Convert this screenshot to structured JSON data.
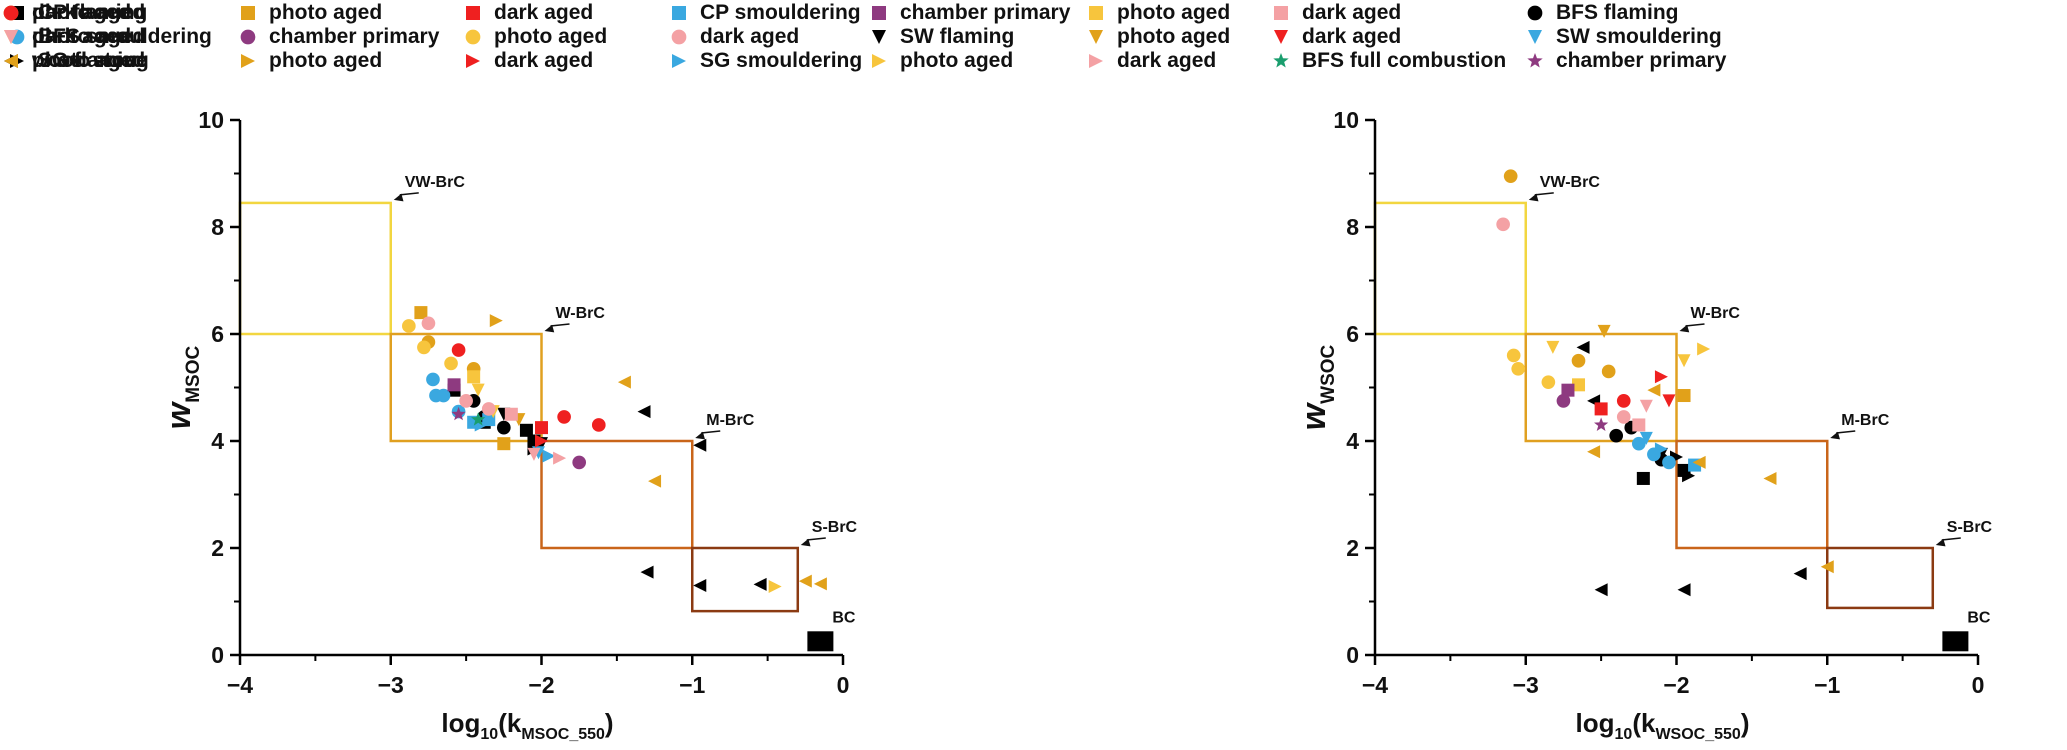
{
  "legend": {
    "items": [
      {
        "label": "CP flaming",
        "marker": "square",
        "color": "#000000"
      },
      {
        "label": "BFS smouldering",
        "marker": "circle",
        "color": "#3aa8e0"
      },
      {
        "label": "SG flaming",
        "marker": "triangle-right",
        "color": "#000000"
      },
      {
        "label": "photo aged",
        "marker": "square",
        "color": "#e1a11a"
      },
      {
        "label": "chamber primary",
        "marker": "circle",
        "color": "#8e3a80"
      },
      {
        "label": "photo aged",
        "marker": "triangle-right",
        "color": "#e1a11a"
      },
      {
        "label": "dark aged",
        "marker": "square",
        "color": "#ef2020"
      },
      {
        "label": "photo aged",
        "marker": "circle",
        "color": "#f7c53d"
      },
      {
        "label": "dark aged",
        "marker": "triangle-right",
        "color": "#ef2020"
      },
      {
        "label": "CP smouldering",
        "marker": "square",
        "color": "#3aa8e0"
      },
      {
        "label": "dark aged",
        "marker": "circle",
        "color": "#f4a1a4"
      },
      {
        "label": "SG smouldering",
        "marker": "triangle-right",
        "color": "#3aa8e0"
      },
      {
        "label": "chamber primary",
        "marker": "square",
        "color": "#8e3a80"
      },
      {
        "label": "SW flaming",
        "marker": "triangle-down",
        "color": "#000000"
      },
      {
        "label": "photo aged",
        "marker": "triangle-right",
        "color": "#f7c53d"
      },
      {
        "label": "photo aged",
        "marker": "square",
        "color": "#f7c53d"
      },
      {
        "label": "photo aged",
        "marker": "triangle-down",
        "color": "#e1a11a"
      },
      {
        "label": "dark aged",
        "marker": "triangle-right",
        "color": "#f4a1a4"
      },
      {
        "label": "dark aged",
        "marker": "square",
        "color": "#f4a1a4"
      },
      {
        "label": "dark aged",
        "marker": "triangle-down",
        "color": "#ef2020"
      },
      {
        "label": "BFS full combustion",
        "marker": "star",
        "color": "#1a9e6e"
      },
      {
        "label": "BFS flaming",
        "marker": "circle",
        "color": "#000000"
      },
      {
        "label": "SW smouldering",
        "marker": "triangle-down",
        "color": "#3aa8e0"
      },
      {
        "label": "chamber primary",
        "marker": "star",
        "color": "#8e3a80"
      },
      {
        "label": "photo aged",
        "marker": "circle",
        "color": "#e1a11a"
      },
      {
        "label": "photo aged",
        "marker": "triangle-down",
        "color": "#f7c53d"
      },
      {
        "label": "wood stove",
        "marker": "triangle-left",
        "color": "#000000"
      },
      {
        "label": "dark aged",
        "marker": "circle",
        "color": "#ef2020"
      },
      {
        "label": "dark aged",
        "marker": "triangle-down",
        "color": "#f4a1a4"
      },
      {
        "label": "photo aged",
        "marker": "triangle-left",
        "color": "#e1a11a"
      }
    ]
  },
  "colors": {
    "black": "#000000",
    "blue": "#3aa8e0",
    "orange": "#e1a11a",
    "yellow": "#f7c53d",
    "red": "#ef2020",
    "pink": "#f4a1a4",
    "purple": "#8e3a80",
    "green": "#1a9e6e",
    "box_vw": "#f2d640",
    "box_w": "#e0a020",
    "box_m": "#c9651a",
    "box_s": "#8b3a12"
  },
  "chart_data": [
    {
      "type": "scatter",
      "ylabel_main": "w",
      "ylabel_sub": "MSOC",
      "xlabel_main": "log",
      "xlabel_sub1": "10",
      "xlabel_paren_open": "(k",
      "xlabel_sub2": "MSOC_550",
      "xlabel_paren_close": ")",
      "xlim": [
        -4,
        0
      ],
      "ylim": [
        0,
        10
      ],
      "xticks": [
        -4,
        -3,
        -2,
        -1,
        0
      ],
      "xtick_labels": [
        "−4",
        "−3",
        "−2",
        "−1",
        "0"
      ],
      "yticks": [
        0,
        2,
        4,
        6,
        8,
        10
      ],
      "ytick_labels": [
        "0",
        "2",
        "4",
        "6",
        "8",
        "10"
      ],
      "regions": [
        {
          "name": "VW-BrC",
          "x": [
            -4,
            -3
          ],
          "y": [
            6,
            8.45
          ],
          "color": "box_vw",
          "label": "VW-BrC"
        },
        {
          "name": "W-BrC",
          "x": [
            -3,
            -2
          ],
          "y": [
            4,
            6
          ],
          "color": "box_w",
          "label": "W-BrC"
        },
        {
          "name": "M-BrC",
          "x": [
            -2,
            -1
          ],
          "y": [
            2,
            4
          ],
          "color": "box_m",
          "label": "M-BrC"
        },
        {
          "name": "S-BrC",
          "x": [
            -1,
            -0.3
          ],
          "y": [
            0.82,
            2
          ],
          "color": "box_s",
          "label": "S-BrC"
        }
      ],
      "bc": {
        "label": "BC",
        "x": -0.15,
        "y": 0.2
      },
      "points": [
        {
          "x": -2.58,
          "y": 4.95,
          "m": "square",
          "c": "black"
        },
        {
          "x": -2.1,
          "y": 4.2,
          "m": "square",
          "c": "black"
        },
        {
          "x": -2.05,
          "y": 4.0,
          "m": "square",
          "c": "black"
        },
        {
          "x": -2.38,
          "y": 4.35,
          "m": "square",
          "c": "black"
        },
        {
          "x": -2.45,
          "y": 4.75,
          "m": "circle",
          "c": "black"
        },
        {
          "x": -2.25,
          "y": 4.25,
          "m": "circle",
          "c": "black"
        },
        {
          "x": -2.38,
          "y": 4.45,
          "m": "circle",
          "c": "black"
        },
        {
          "x": -2.05,
          "y": 3.85,
          "m": "triangle-right",
          "c": "black"
        },
        {
          "x": -2.0,
          "y": 3.95,
          "m": "triangle-down",
          "c": "black"
        },
        {
          "x": -2.25,
          "y": 4.5,
          "m": "triangle-down",
          "c": "black"
        },
        {
          "x": -1.32,
          "y": 4.55,
          "m": "triangle-left",
          "c": "black"
        },
        {
          "x": -0.95,
          "y": 3.92,
          "m": "triangle-left",
          "c": "black"
        },
        {
          "x": -1.3,
          "y": 1.55,
          "m": "triangle-left",
          "c": "black"
        },
        {
          "x": -0.95,
          "y": 1.3,
          "m": "triangle-left",
          "c": "black"
        },
        {
          "x": -0.55,
          "y": 1.32,
          "m": "triangle-left",
          "c": "black"
        },
        {
          "x": -2.7,
          "y": 4.85,
          "m": "circle",
          "c": "blue"
        },
        {
          "x": -2.65,
          "y": 4.85,
          "m": "circle",
          "c": "blue"
        },
        {
          "x": -2.72,
          "y": 5.15,
          "m": "circle",
          "c": "blue"
        },
        {
          "x": -2.55,
          "y": 4.55,
          "m": "circle",
          "c": "blue"
        },
        {
          "x": -2.45,
          "y": 4.35,
          "m": "square",
          "c": "blue"
        },
        {
          "x": -2.35,
          "y": 4.4,
          "m": "square",
          "c": "blue"
        },
        {
          "x": -2.4,
          "y": 4.3,
          "m": "triangle-right",
          "c": "blue"
        },
        {
          "x": -1.95,
          "y": 3.72,
          "m": "triangle-right",
          "c": "blue"
        },
        {
          "x": -2.02,
          "y": 3.78,
          "m": "triangle-down",
          "c": "blue"
        },
        {
          "x": -2.8,
          "y": 6.4,
          "m": "square",
          "c": "orange"
        },
        {
          "x": -2.3,
          "y": 6.25,
          "m": "triangle-right",
          "c": "orange"
        },
        {
          "x": -2.45,
          "y": 5.35,
          "m": "circle",
          "c": "orange"
        },
        {
          "x": -2.75,
          "y": 5.85,
          "m": "circle",
          "c": "orange"
        },
        {
          "x": -2.25,
          "y": 3.95,
          "m": "square",
          "c": "orange"
        },
        {
          "x": -1.45,
          "y": 5.1,
          "m": "triangle-left",
          "c": "orange"
        },
        {
          "x": -1.25,
          "y": 3.25,
          "m": "triangle-left",
          "c": "orange"
        },
        {
          "x": -0.25,
          "y": 1.38,
          "m": "triangle-left",
          "c": "orange"
        },
        {
          "x": -0.15,
          "y": 1.33,
          "m": "triangle-left",
          "c": "orange"
        },
        {
          "x": -2.15,
          "y": 4.4,
          "m": "triangle-down",
          "c": "orange"
        },
        {
          "x": -2.88,
          "y": 6.15,
          "m": "circle",
          "c": "yellow"
        },
        {
          "x": -2.78,
          "y": 5.75,
          "m": "circle",
          "c": "yellow"
        },
        {
          "x": -2.6,
          "y": 5.45,
          "m": "circle",
          "c": "yellow"
        },
        {
          "x": -2.45,
          "y": 5.2,
          "m": "square",
          "c": "yellow"
        },
        {
          "x": -0.45,
          "y": 1.28,
          "m": "triangle-right",
          "c": "yellow"
        },
        {
          "x": -2.42,
          "y": 4.95,
          "m": "triangle-down",
          "c": "yellow"
        },
        {
          "x": -2.32,
          "y": 4.55,
          "m": "triangle-down",
          "c": "yellow"
        },
        {
          "x": -2.55,
          "y": 5.7,
          "m": "circle",
          "c": "red"
        },
        {
          "x": -1.85,
          "y": 4.45,
          "m": "circle",
          "c": "red"
        },
        {
          "x": -1.62,
          "y": 4.3,
          "m": "circle",
          "c": "red"
        },
        {
          "x": -2.0,
          "y": 4.25,
          "m": "square",
          "c": "red"
        },
        {
          "x": -2.0,
          "y": 4.0,
          "m": "triangle-right",
          "c": "red"
        },
        {
          "x": -2.75,
          "y": 6.2,
          "m": "circle",
          "c": "pink"
        },
        {
          "x": -2.5,
          "y": 4.75,
          "m": "circle",
          "c": "pink"
        },
        {
          "x": -2.35,
          "y": 4.6,
          "m": "circle",
          "c": "pink"
        },
        {
          "x": -2.2,
          "y": 4.5,
          "m": "square",
          "c": "pink"
        },
        {
          "x": -1.88,
          "y": 3.68,
          "m": "triangle-right",
          "c": "pink"
        },
        {
          "x": -2.05,
          "y": 3.75,
          "m": "triangle-down",
          "c": "pink"
        },
        {
          "x": -2.58,
          "y": 5.05,
          "m": "square",
          "c": "purple"
        },
        {
          "x": -1.75,
          "y": 3.6,
          "m": "circle",
          "c": "purple"
        },
        {
          "x": -2.55,
          "y": 4.5,
          "m": "star",
          "c": "purple"
        },
        {
          "x": -2.42,
          "y": 4.4,
          "m": "star",
          "c": "green"
        }
      ]
    },
    {
      "type": "scatter",
      "ylabel_main": "w",
      "ylabel_sub": "WSOC",
      "xlabel_main": "log",
      "xlabel_sub1": "10",
      "xlabel_paren_open": "(k",
      "xlabel_sub2": "WSOC_550",
      "xlabel_paren_close": ")",
      "xlim": [
        -4,
        0
      ],
      "ylim": [
        0,
        10
      ],
      "xticks": [
        -4,
        -3,
        -2,
        -1,
        0
      ],
      "xtick_labels": [
        "−4",
        "−3",
        "−2",
        "−1",
        "0"
      ],
      "yticks": [
        0,
        2,
        4,
        6,
        8,
        10
      ],
      "ytick_labels": [
        "0",
        "2",
        "4",
        "6",
        "8",
        "10"
      ],
      "regions": [
        {
          "name": "VW-BrC",
          "x": [
            -4,
            -3
          ],
          "y": [
            6,
            8.45
          ],
          "color": "box_vw",
          "label": "VW-BrC"
        },
        {
          "name": "W-BrC",
          "x": [
            -3,
            -2
          ],
          "y": [
            4,
            6
          ],
          "color": "box_w",
          "label": "W-BrC"
        },
        {
          "name": "M-BrC",
          "x": [
            -2,
            -1
          ],
          "y": [
            2,
            4
          ],
          "color": "box_m",
          "label": "M-BrC"
        },
        {
          "name": "S-BrC",
          "x": [
            -1,
            -0.3
          ],
          "y": [
            0.88,
            2
          ],
          "color": "box_s",
          "label": "S-BrC"
        }
      ],
      "bc": {
        "label": "BC",
        "x": -0.15,
        "y": 0.2
      },
      "points": [
        {
          "x": -2.22,
          "y": 3.3,
          "m": "square",
          "c": "black"
        },
        {
          "x": -1.95,
          "y": 3.45,
          "m": "square",
          "c": "black"
        },
        {
          "x": -2.3,
          "y": 4.25,
          "m": "circle",
          "c": "black"
        },
        {
          "x": -2.4,
          "y": 4.1,
          "m": "circle",
          "c": "black"
        },
        {
          "x": -2.1,
          "y": 3.65,
          "m": "circle",
          "c": "black"
        },
        {
          "x": -2.0,
          "y": 3.7,
          "m": "triangle-right",
          "c": "black"
        },
        {
          "x": -1.92,
          "y": 3.35,
          "m": "triangle-right",
          "c": "black"
        },
        {
          "x": -2.1,
          "y": 3.75,
          "m": "triangle-down",
          "c": "black"
        },
        {
          "x": -2.62,
          "y": 5.75,
          "m": "triangle-left",
          "c": "black"
        },
        {
          "x": -2.55,
          "y": 4.75,
          "m": "triangle-left",
          "c": "black"
        },
        {
          "x": -2.5,
          "y": 1.22,
          "m": "triangle-left",
          "c": "black"
        },
        {
          "x": -1.95,
          "y": 1.22,
          "m": "triangle-left",
          "c": "black"
        },
        {
          "x": -1.18,
          "y": 1.52,
          "m": "triangle-left",
          "c": "black"
        },
        {
          "x": -2.15,
          "y": 3.75,
          "m": "circle",
          "c": "blue"
        },
        {
          "x": -2.05,
          "y": 3.6,
          "m": "circle",
          "c": "blue"
        },
        {
          "x": -2.25,
          "y": 3.95,
          "m": "circle",
          "c": "blue"
        },
        {
          "x": -1.88,
          "y": 3.55,
          "m": "square",
          "c": "blue"
        },
        {
          "x": -2.1,
          "y": 3.85,
          "m": "triangle-right",
          "c": "blue"
        },
        {
          "x": -2.2,
          "y": 4.05,
          "m": "triangle-down",
          "c": "blue"
        },
        {
          "x": -3.1,
          "y": 8.95,
          "m": "circle",
          "c": "orange"
        },
        {
          "x": -2.65,
          "y": 5.5,
          "m": "circle",
          "c": "orange"
        },
        {
          "x": -2.45,
          "y": 5.3,
          "m": "circle",
          "c": "orange"
        },
        {
          "x": -2.48,
          "y": 6.05,
          "m": "triangle-down",
          "c": "orange"
        },
        {
          "x": -1.95,
          "y": 4.85,
          "m": "square",
          "c": "orange"
        },
        {
          "x": -1.85,
          "y": 3.6,
          "m": "triangle-left",
          "c": "orange"
        },
        {
          "x": -2.55,
          "y": 3.8,
          "m": "triangle-left",
          "c": "orange"
        },
        {
          "x": -1.38,
          "y": 3.3,
          "m": "triangle-left",
          "c": "orange"
        },
        {
          "x": -1.0,
          "y": 1.65,
          "m": "triangle-left",
          "c": "orange"
        },
        {
          "x": -2.15,
          "y": 4.95,
          "m": "triangle-left",
          "c": "orange"
        },
        {
          "x": -3.08,
          "y": 5.6,
          "m": "circle",
          "c": "yellow"
        },
        {
          "x": -3.05,
          "y": 5.35,
          "m": "circle",
          "c": "yellow"
        },
        {
          "x": -2.85,
          "y": 5.1,
          "m": "circle",
          "c": "yellow"
        },
        {
          "x": -2.65,
          "y": 5.05,
          "m": "square",
          "c": "yellow"
        },
        {
          "x": -2.82,
          "y": 5.75,
          "m": "triangle-down",
          "c": "yellow"
        },
        {
          "x": -1.95,
          "y": 5.5,
          "m": "triangle-down",
          "c": "yellow"
        },
        {
          "x": -1.82,
          "y": 5.72,
          "m": "triangle-right",
          "c": "yellow"
        },
        {
          "x": -2.35,
          "y": 4.75,
          "m": "circle",
          "c": "red"
        },
        {
          "x": -2.5,
          "y": 4.6,
          "m": "square",
          "c": "red"
        },
        {
          "x": -2.1,
          "y": 5.2,
          "m": "triangle-right",
          "c": "red"
        },
        {
          "x": -2.05,
          "y": 4.75,
          "m": "triangle-down",
          "c": "red"
        },
        {
          "x": -3.15,
          "y": 8.05,
          "m": "circle",
          "c": "pink"
        },
        {
          "x": -2.35,
          "y": 4.45,
          "m": "circle",
          "c": "pink"
        },
        {
          "x": -2.25,
          "y": 4.3,
          "m": "square",
          "c": "pink"
        },
        {
          "x": -2.2,
          "y": 4.65,
          "m": "triangle-down",
          "c": "pink"
        },
        {
          "x": -2.72,
          "y": 4.95,
          "m": "square",
          "c": "purple"
        },
        {
          "x": -2.75,
          "y": 4.75,
          "m": "circle",
          "c": "purple"
        },
        {
          "x": -2.5,
          "y": 4.3,
          "m": "star",
          "c": "purple"
        }
      ]
    }
  ]
}
